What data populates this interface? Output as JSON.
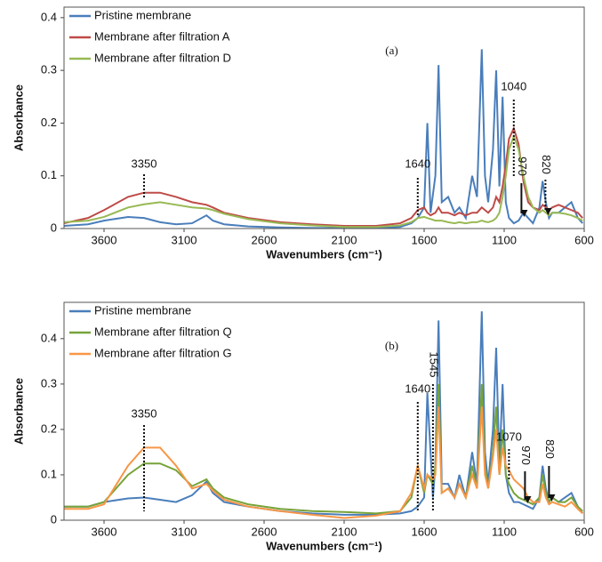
{
  "chart_data": [
    {
      "type": "line",
      "panel_label": "(a)",
      "x_label": "Wavenumbers (cm⁻¹)",
      "y_label": "Absorbance",
      "xlim": [
        3850,
        600
      ],
      "ylim": [
        0,
        0.42
      ],
      "xticks": [
        3600,
        3100,
        2600,
        2100,
        1600,
        1100,
        600
      ],
      "yticks": [
        0,
        0.1,
        0.2,
        0.3,
        0.4
      ],
      "annotations": [
        "3350",
        "1640",
        "1040",
        "970",
        "820"
      ],
      "x": [
        3850,
        3700,
        3600,
        3450,
        3350,
        3250,
        3150,
        3050,
        2960,
        2920,
        2850,
        2700,
        2500,
        2300,
        2100,
        1900,
        1750,
        1680,
        1640,
        1600,
        1580,
        1560,
        1530,
        1510,
        1490,
        1450,
        1410,
        1380,
        1340,
        1300,
        1270,
        1240,
        1220,
        1200,
        1170,
        1150,
        1130,
        1110,
        1090,
        1070,
        1040,
        1010,
        980,
        950,
        920,
        880,
        860,
        840,
        820,
        800,
        760,
        720,
        680,
        640,
        610
      ],
      "series": [
        {
          "name": "Pristine membrane",
          "color": "#4a7ebb",
          "values": [
            0.005,
            0.008,
            0.015,
            0.022,
            0.02,
            0.012,
            0.008,
            0.01,
            0.025,
            0.015,
            0.008,
            0.004,
            0.002,
            0.001,
            0.001,
            0.001,
            0.003,
            0.01,
            0.02,
            0.04,
            0.2,
            0.03,
            0.1,
            0.31,
            0.05,
            0.06,
            0.03,
            0.04,
            0.02,
            0.1,
            0.06,
            0.34,
            0.1,
            0.05,
            0.15,
            0.3,
            0.08,
            0.25,
            0.05,
            0.02,
            0.01,
            0.015,
            0.03,
            0.02,
            0.01,
            0.04,
            0.09,
            0.05,
            0.02,
            0.03,
            0.03,
            0.04,
            0.05,
            0.02,
            0.01
          ]
        },
        {
          "name": "Membrane after filtration A",
          "color": "#be4b48",
          "values": [
            0.01,
            0.02,
            0.035,
            0.06,
            0.068,
            0.068,
            0.06,
            0.05,
            0.045,
            0.04,
            0.03,
            0.02,
            0.012,
            0.008,
            0.005,
            0.005,
            0.01,
            0.02,
            0.035,
            0.04,
            0.03,
            0.025,
            0.03,
            0.04,
            0.03,
            0.03,
            0.025,
            0.03,
            0.025,
            0.03,
            0.03,
            0.04,
            0.035,
            0.03,
            0.04,
            0.06,
            0.05,
            0.08,
            0.12,
            0.17,
            0.19,
            0.16,
            0.09,
            0.05,
            0.04,
            0.035,
            0.045,
            0.04,
            0.035,
            0.04,
            0.045,
            0.04,
            0.035,
            0.03,
            0.02
          ]
        },
        {
          "name": "Membrane after filtration D",
          "color": "#98b954",
          "values": [
            0.012,
            0.015,
            0.022,
            0.04,
            0.046,
            0.05,
            0.045,
            0.04,
            0.038,
            0.035,
            0.028,
            0.018,
            0.01,
            0.006,
            0.003,
            0.003,
            0.006,
            0.012,
            0.02,
            0.022,
            0.02,
            0.018,
            0.015,
            0.015,
            0.015,
            0.012,
            0.01,
            0.012,
            0.01,
            0.012,
            0.012,
            0.015,
            0.013,
            0.012,
            0.015,
            0.02,
            0.03,
            0.06,
            0.1,
            0.15,
            0.175,
            0.15,
            0.1,
            0.06,
            0.04,
            0.03,
            0.035,
            0.03,
            0.025,
            0.03,
            0.03,
            0.028,
            0.025,
            0.02,
            0.015
          ]
        }
      ]
    },
    {
      "type": "line",
      "panel_label": "(b)",
      "x_label": "Wavenumbers (cm⁻¹)",
      "y_label": "Absorbance",
      "xlim": [
        3850,
        600
      ],
      "ylim": [
        0,
        0.48
      ],
      "xticks": [
        3600,
        3100,
        2600,
        2100,
        1600,
        1100,
        600
      ],
      "yticks": [
        0,
        0.1,
        0.2,
        0.3,
        0.4
      ],
      "annotations": [
        "3350",
        "1640",
        "1545",
        "1070",
        "970",
        "820"
      ],
      "x": [
        3850,
        3700,
        3600,
        3450,
        3350,
        3250,
        3150,
        3050,
        2960,
        2920,
        2850,
        2700,
        2500,
        2300,
        2100,
        1900,
        1750,
        1680,
        1640,
        1600,
        1580,
        1545,
        1530,
        1510,
        1490,
        1450,
        1410,
        1380,
        1340,
        1300,
        1270,
        1240,
        1220,
        1200,
        1170,
        1150,
        1130,
        1110,
        1090,
        1070,
        1040,
        1010,
        980,
        950,
        920,
        880,
        860,
        840,
        820,
        800,
        760,
        720,
        680,
        640,
        610
      ],
      "series": [
        {
          "name": "Pristine membrane",
          "color": "#4a7ebb",
          "values": [
            0.03,
            0.03,
            0.04,
            0.048,
            0.05,
            0.045,
            0.04,
            0.055,
            0.085,
            0.06,
            0.04,
            0.03,
            0.02,
            0.015,
            0.012,
            0.012,
            0.015,
            0.02,
            0.03,
            0.05,
            0.28,
            0.05,
            0.12,
            0.44,
            0.08,
            0.08,
            0.05,
            0.1,
            0.05,
            0.15,
            0.08,
            0.46,
            0.15,
            0.08,
            0.2,
            0.38,
            0.12,
            0.3,
            0.1,
            0.06,
            0.04,
            0.04,
            0.035,
            0.03,
            0.025,
            0.05,
            0.12,
            0.07,
            0.04,
            0.05,
            0.04,
            0.05,
            0.06,
            0.03,
            0.015
          ]
        },
        {
          "name": "Membrane after filtration Q",
          "color": "#77a33a",
          "values": [
            0.03,
            0.03,
            0.04,
            0.1,
            0.125,
            0.125,
            0.11,
            0.075,
            0.09,
            0.07,
            0.05,
            0.035,
            0.025,
            0.02,
            0.018,
            0.015,
            0.02,
            0.05,
            0.12,
            0.06,
            0.1,
            0.08,
            0.12,
            0.3,
            0.06,
            0.07,
            0.05,
            0.08,
            0.05,
            0.12,
            0.07,
            0.3,
            0.12,
            0.07,
            0.15,
            0.25,
            0.1,
            0.2,
            0.1,
            0.08,
            0.06,
            0.05,
            0.045,
            0.04,
            0.035,
            0.05,
            0.1,
            0.06,
            0.04,
            0.05,
            0.04,
            0.04,
            0.05,
            0.03,
            0.02
          ]
        },
        {
          "name": "Membrane after filtration G",
          "color": "#f79646",
          "values": [
            0.025,
            0.025,
            0.035,
            0.12,
            0.16,
            0.16,
            0.12,
            0.07,
            0.08,
            0.065,
            0.045,
            0.03,
            0.02,
            0.012,
            0.005,
            0.01,
            0.02,
            0.06,
            0.12,
            0.07,
            0.1,
            0.09,
            0.1,
            0.25,
            0.06,
            0.07,
            0.05,
            0.08,
            0.05,
            0.1,
            0.07,
            0.25,
            0.1,
            0.07,
            0.14,
            0.2,
            0.1,
            0.16,
            0.12,
            0.11,
            0.09,
            0.08,
            0.07,
            0.05,
            0.04,
            0.04,
            0.08,
            0.05,
            0.035,
            0.04,
            0.035,
            0.03,
            0.04,
            0.025,
            0.015
          ]
        }
      ]
    }
  ]
}
